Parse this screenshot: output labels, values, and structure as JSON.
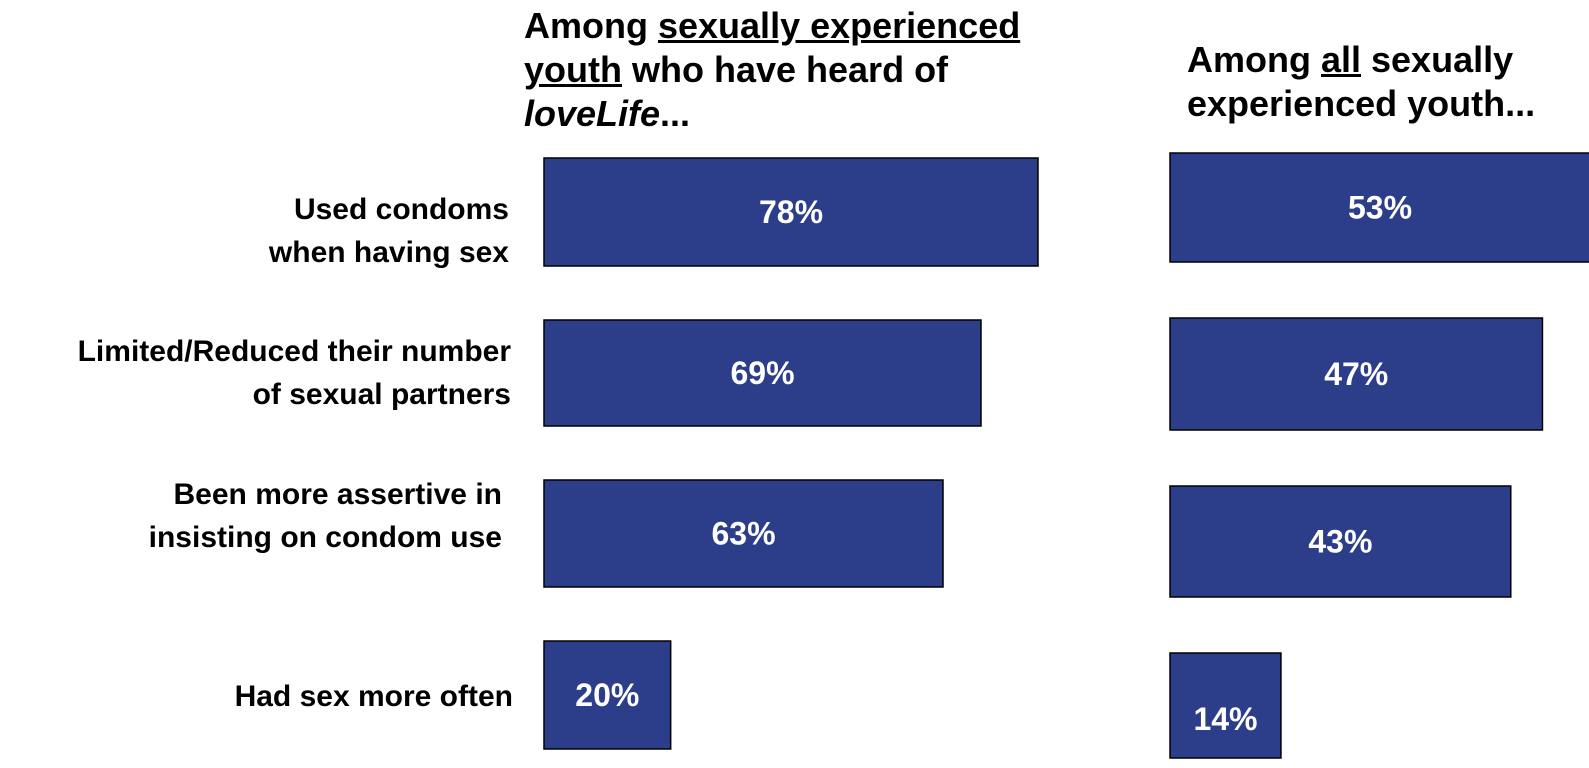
{
  "chart_data": [
    {
      "type": "bar",
      "orientation": "horizontal",
      "title_parts": [
        {
          "text": "Among ",
          "style": "normal"
        },
        {
          "text": "sexually experienced youth",
          "style": "underline"
        },
        {
          "text": " who have heard of ",
          "style": "normal"
        },
        {
          "text": "loveLife",
          "style": "italic"
        },
        {
          "text": "...",
          "style": "normal"
        }
      ],
      "categories": [
        "Used condoms\nwhen having sex",
        "Limited/Reduced their number\nof sexual partners",
        "Been more assertive in\ninsisting on condom use",
        "Had sex more often"
      ],
      "values": [
        78,
        69,
        63,
        20
      ],
      "value_labels": [
        "78%",
        "69%",
        "63%",
        "20%"
      ],
      "bar_color": "#2c3e8a"
    },
    {
      "type": "bar",
      "orientation": "horizontal",
      "title_parts": [
        {
          "text": "Among ",
          "style": "normal"
        },
        {
          "text": "all",
          "style": "underline"
        },
        {
          "text": " sexually experienced youth...",
          "style": "normal"
        }
      ],
      "categories": [
        "Used condoms\nwhen having sex",
        "Limited/Reduced their number\nof sexual partners",
        "Been more assertive in\ninsisting on condom use",
        "Had sex more often"
      ],
      "values": [
        53,
        47,
        43,
        14
      ],
      "value_labels": [
        "53%",
        "47%",
        "43%",
        "14%"
      ],
      "bar_color": "#2c3e8a"
    }
  ]
}
